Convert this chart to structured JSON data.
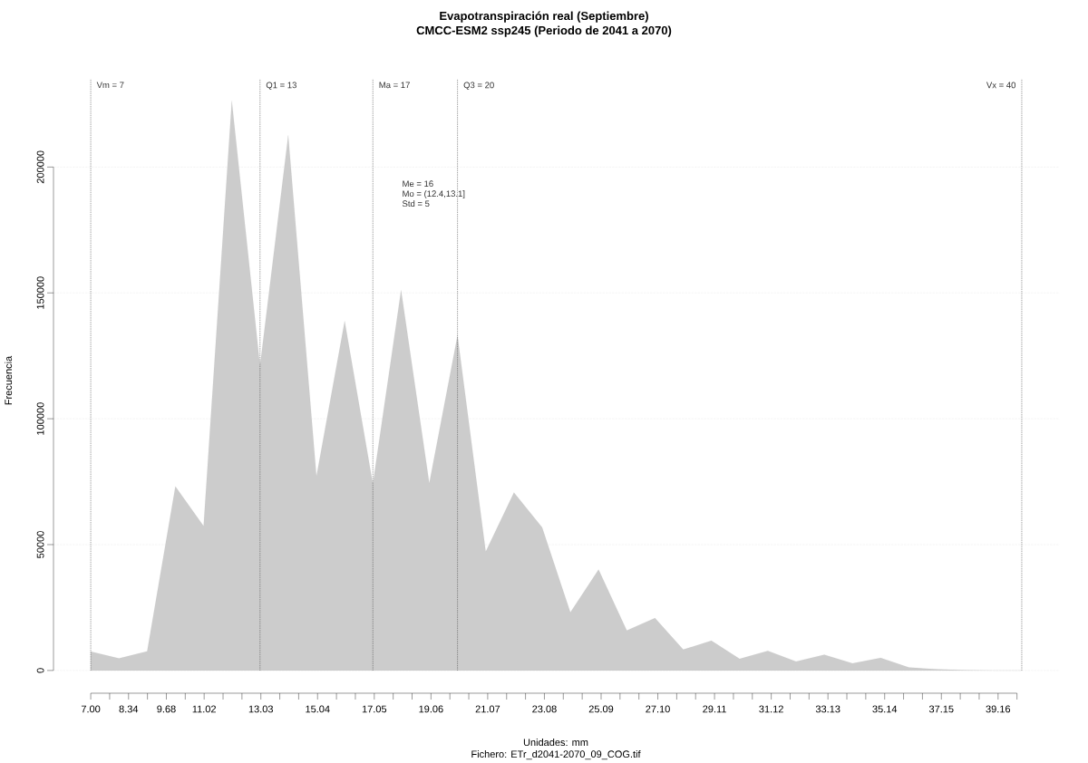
{
  "chart_data": {
    "type": "area",
    "title": "Evapotranspiración real (Septiembre)",
    "subtitle": "CMCC-ESM2 ssp245 (Periodo de 2041 a 2070)",
    "xlabel": "Unidades: mm",
    "ylabel": "Frecuencia",
    "x": [
      7,
      8,
      9,
      10,
      11,
      12,
      13,
      14,
      15,
      16,
      17,
      18,
      19,
      20,
      21,
      22,
      23,
      24,
      25,
      26,
      27,
      28,
      29,
      30,
      31,
      32,
      33,
      34,
      35,
      36,
      37,
      38,
      39,
      40
    ],
    "series": [
      {
        "color": "#cccccc",
        "values": [
          7500,
          4800,
          7600,
          73100,
          57400,
          226300,
          121000,
          212600,
          77100,
          138800,
          74100,
          151100,
          74400,
          133100,
          47200,
          70700,
          56800,
          23100,
          40100,
          15900,
          20800,
          8300,
          11800,
          4600,
          7800,
          3600,
          6300,
          2800,
          5000,
          1200,
          500,
          100,
          0,
          0
        ]
      }
    ],
    "xlim": [
      5.68,
      41.32
    ],
    "ylim": [
      -9040,
      235040
    ],
    "xticks": [
      {
        "value": 7.0,
        "label": "7.00"
      },
      {
        "value": 7.67,
        "label": null
      },
      {
        "value": 8.34,
        "label": "8.34"
      },
      {
        "value": 9.01,
        "label": null
      },
      {
        "value": 9.68,
        "label": "9.68"
      },
      {
        "value": 10.35,
        "label": null
      },
      {
        "value": 11.02,
        "label": "11.02"
      },
      {
        "value": 11.69,
        "label": null
      },
      {
        "value": 12.36,
        "label": null
      },
      {
        "value": 13.03,
        "label": "13.03"
      },
      {
        "value": 13.7,
        "label": null
      },
      {
        "value": 14.37,
        "label": null
      },
      {
        "value": 15.04,
        "label": "15.04"
      },
      {
        "value": 15.71,
        "label": null
      },
      {
        "value": 16.38,
        "label": null
      },
      {
        "value": 17.05,
        "label": "17.05"
      },
      {
        "value": 17.72,
        "label": null
      },
      {
        "value": 18.39,
        "label": null
      },
      {
        "value": 19.06,
        "label": "19.06"
      },
      {
        "value": 19.73,
        "label": null
      },
      {
        "value": 20.4,
        "label": null
      },
      {
        "value": 21.07,
        "label": "21.07"
      },
      {
        "value": 21.74,
        "label": null
      },
      {
        "value": 22.41,
        "label": null
      },
      {
        "value": 23.08,
        "label": "23.08"
      },
      {
        "value": 23.75,
        "label": null
      },
      {
        "value": 24.42,
        "label": null
      },
      {
        "value": 25.09,
        "label": "25.09"
      },
      {
        "value": 25.76,
        "label": null
      },
      {
        "value": 26.43,
        "label": null
      },
      {
        "value": 27.1,
        "label": "27.10"
      },
      {
        "value": 27.77,
        "label": null
      },
      {
        "value": 28.44,
        "label": null
      },
      {
        "value": 29.11,
        "label": "29.11"
      },
      {
        "value": 29.78,
        "label": null
      },
      {
        "value": 30.45,
        "label": null
      },
      {
        "value": 31.12,
        "label": "31.12"
      },
      {
        "value": 31.79,
        "label": null
      },
      {
        "value": 32.46,
        "label": null
      },
      {
        "value": 33.13,
        "label": "33.13"
      },
      {
        "value": 33.8,
        "label": null
      },
      {
        "value": 34.47,
        "label": null
      },
      {
        "value": 35.14,
        "label": "35.14"
      },
      {
        "value": 35.81,
        "label": null
      },
      {
        "value": 36.48,
        "label": null
      },
      {
        "value": 37.15,
        "label": "37.15"
      },
      {
        "value": 37.82,
        "label": null
      },
      {
        "value": 38.49,
        "label": null
      },
      {
        "value": 39.16,
        "label": "39.16"
      },
      {
        "value": 39.83,
        "label": null
      }
    ],
    "yticks": [
      0,
      50000,
      100000,
      150000,
      200000
    ],
    "grid": "y",
    "ref_lines": [
      {
        "axis": "x",
        "value": 7,
        "label": "Vm = 7"
      },
      {
        "axis": "x",
        "value": 13,
        "label": "Q1 = 13"
      },
      {
        "axis": "x",
        "value": 17,
        "label": "Ma = 17"
      },
      {
        "axis": "x",
        "value": 20,
        "label": "Q3 = 20"
      },
      {
        "axis": "x",
        "value": 40,
        "label": "Vx = 40"
      }
    ],
    "marker": "none",
    "line_style": "solid",
    "annotations": [
      "Me = 16",
      "Mo = (12.4,13.1]",
      "Std = 5",
      "Fichero: ETr_d2041-2070_09_COG.tif"
    ]
  }
}
